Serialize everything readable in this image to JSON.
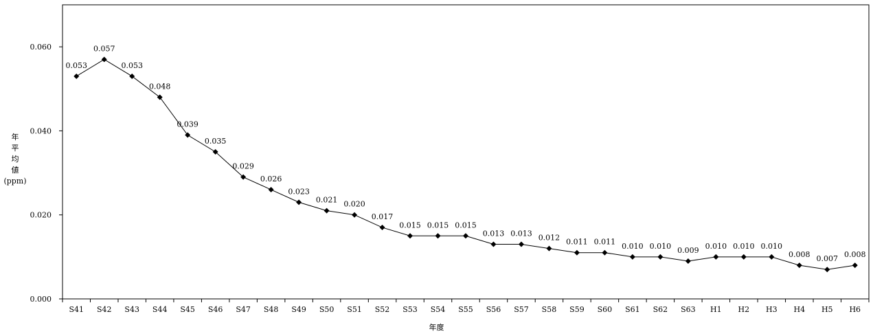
{
  "chart_data": {
    "type": "line",
    "categories": [
      "S41",
      "S42",
      "S43",
      "S44",
      "S45",
      "S46",
      "S47",
      "S48",
      "S49",
      "S50",
      "S51",
      "S52",
      "S53",
      "S54",
      "S55",
      "S56",
      "S57",
      "S58",
      "S59",
      "S60",
      "S61",
      "S62",
      "S63",
      "H1",
      "H2",
      "H3",
      "H4",
      "H5",
      "H6"
    ],
    "values": [
      0.053,
      0.057,
      0.053,
      0.048,
      0.039,
      0.035,
      0.029,
      0.026,
      0.023,
      0.021,
      0.02,
      0.017,
      0.015,
      0.015,
      0.015,
      0.013,
      0.013,
      0.012,
      0.011,
      0.011,
      0.01,
      0.01,
      0.009,
      0.01,
      0.01,
      0.01,
      0.008,
      0.007,
      0.008
    ],
    "data_labels": [
      "0.053",
      "0.057",
      "0.053",
      "0.048",
      "0.039",
      "0.035",
      "0.029",
      "0.026",
      "0.023",
      "0.021",
      "0.020",
      "0.017",
      "0.015",
      "0.015",
      "0.015",
      "0.013",
      "0.013",
      "0.012",
      "0.011",
      "0.011",
      "0.010",
      "0.010",
      "0.009",
      "0.010",
      "0.010",
      "0.010",
      "0.008",
      "0.007",
      "0.008"
    ],
    "y_ticks": [
      0.0,
      0.02,
      0.04,
      0.06
    ],
    "y_tick_labels": [
      "0.000",
      "0.020",
      "0.040",
      "0.060"
    ],
    "ylim": [
      0,
      0.07
    ],
    "xlabel": "年度",
    "ylabel_lines": [
      "年",
      "平",
      "均",
      "値",
      "(ppm)"
    ],
    "marker": "diamond",
    "grid": false,
    "line_color": "#000000"
  }
}
